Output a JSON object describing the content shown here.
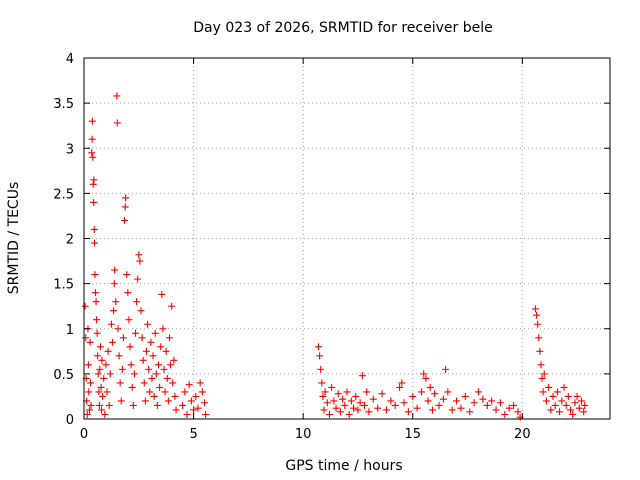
{
  "chart_data": {
    "type": "scatter",
    "title": "Day 023 of 2026, SRMTID for receiver bele",
    "xlabel": "GPS time / hours",
    "ylabel": "SRMTID / TECUs",
    "xlim": [
      0,
      24
    ],
    "ylim": [
      0,
      4
    ],
    "xticks": [
      0,
      5,
      10,
      15,
      20
    ],
    "yticks": [
      0,
      0.5,
      1,
      1.5,
      2,
      2.5,
      3,
      3.5,
      4
    ],
    "xtick_labels": [
      "0",
      "5",
      "10",
      "15",
      "20"
    ],
    "ytick_labels": [
      "0",
      "0.5",
      "1",
      "1.5",
      "2",
      "2.5",
      "3",
      "3.5",
      "4"
    ],
    "grid": true,
    "marker": "+",
    "color": "#ff0000",
    "series": [
      {
        "name": "SRMTID",
        "points": [
          [
            0.05,
            1.25
          ],
          [
            0.08,
            0.9
          ],
          [
            0.1,
            0.45
          ],
          [
            0.12,
            0.2
          ],
          [
            0.15,
            0.05
          ],
          [
            0.18,
            1.0
          ],
          [
            0.2,
            0.6
          ],
          [
            0.22,
            0.3
          ],
          [
            0.25,
            0.1
          ],
          [
            0.28,
            0.85
          ],
          [
            0.3,
            0.4
          ],
          [
            0.32,
            0.15
          ],
          [
            0.35,
            2.95
          ],
          [
            0.37,
            3.1
          ],
          [
            0.38,
            3.3
          ],
          [
            0.4,
            2.9
          ],
          [
            0.42,
            2.6
          ],
          [
            0.44,
            2.4
          ],
          [
            0.45,
            2.65
          ],
          [
            0.47,
            2.1
          ],
          [
            0.48,
            1.95
          ],
          [
            0.5,
            1.6
          ],
          [
            0.52,
            1.4
          ],
          [
            0.55,
            1.3
          ],
          [
            0.57,
            1.1
          ],
          [
            0.6,
            0.95
          ],
          [
            0.62,
            0.7
          ],
          [
            0.65,
            0.5
          ],
          [
            0.68,
            0.3
          ],
          [
            0.7,
            0.15
          ],
          [
            0.72,
            0.55
          ],
          [
            0.75,
            0.8
          ],
          [
            0.78,
            0.35
          ],
          [
            0.8,
            0.1
          ],
          [
            0.82,
            0.65
          ],
          [
            0.85,
            0.25
          ],
          [
            0.9,
            0.45
          ],
          [
            0.95,
            0.05
          ],
          [
            1.0,
            0.6
          ],
          [
            1.05,
            0.3
          ],
          [
            1.1,
            0.75
          ],
          [
            1.15,
            0.15
          ],
          [
            1.2,
            0.5
          ],
          [
            1.25,
            1.05
          ],
          [
            1.3,
            0.85
          ],
          [
            1.35,
            1.2
          ],
          [
            1.38,
            1.5
          ],
          [
            1.4,
            1.65
          ],
          [
            1.45,
            1.3
          ],
          [
            1.5,
            3.58
          ],
          [
            1.52,
            3.28
          ],
          [
            1.55,
            1.0
          ],
          [
            1.6,
            0.7
          ],
          [
            1.65,
            0.4
          ],
          [
            1.7,
            0.2
          ],
          [
            1.75,
            0.55
          ],
          [
            1.8,
            0.9
          ],
          [
            1.85,
            2.2
          ],
          [
            1.88,
            2.35
          ],
          [
            1.9,
            2.45
          ],
          [
            1.95,
            1.6
          ],
          [
            2.0,
            1.4
          ],
          [
            2.05,
            1.1
          ],
          [
            2.1,
            0.8
          ],
          [
            2.15,
            0.6
          ],
          [
            2.2,
            0.35
          ],
          [
            2.25,
            0.15
          ],
          [
            2.3,
            0.5
          ],
          [
            2.35,
            0.95
          ],
          [
            2.4,
            1.3
          ],
          [
            2.45,
            1.55
          ],
          [
            2.5,
            1.82
          ],
          [
            2.55,
            1.75
          ],
          [
            2.6,
            1.2
          ],
          [
            2.65,
            0.9
          ],
          [
            2.7,
            0.65
          ],
          [
            2.75,
            0.4
          ],
          [
            2.8,
            0.2
          ],
          [
            2.85,
            0.75
          ],
          [
            2.9,
            1.05
          ],
          [
            2.95,
            0.55
          ],
          [
            3.0,
            0.3
          ],
          [
            3.05,
            0.85
          ],
          [
            3.1,
            0.45
          ],
          [
            3.15,
            0.7
          ],
          [
            3.2,
            0.25
          ],
          [
            3.25,
            0.95
          ],
          [
            3.3,
            0.5
          ],
          [
            3.35,
            0.15
          ],
          [
            3.4,
            0.6
          ],
          [
            3.45,
            0.35
          ],
          [
            3.5,
            0.8
          ],
          [
            3.55,
            1.38
          ],
          [
            3.6,
            1.0
          ],
          [
            3.65,
            0.55
          ],
          [
            3.7,
            0.3
          ],
          [
            3.75,
            0.75
          ],
          [
            3.8,
            0.45
          ],
          [
            3.85,
            0.2
          ],
          [
            3.9,
            0.9
          ],
          [
            3.95,
            0.6
          ],
          [
            4.0,
            1.25
          ],
          [
            4.05,
            0.4
          ],
          [
            4.1,
            0.65
          ],
          [
            4.15,
            0.25
          ],
          [
            4.2,
            0.1
          ],
          [
            4.5,
            0.15
          ],
          [
            4.6,
            0.3
          ],
          [
            4.7,
            0.05
          ],
          [
            4.8,
            0.38
          ],
          [
            4.9,
            0.2
          ],
          [
            5.0,
            0.1
          ],
          [
            5.1,
            0.25
          ],
          [
            5.2,
            0.12
          ],
          [
            5.3,
            0.4
          ],
          [
            5.4,
            0.3
          ],
          [
            5.5,
            0.18
          ],
          [
            5.55,
            0.05
          ],
          [
            10.7,
            0.8
          ],
          [
            10.75,
            0.7
          ],
          [
            10.8,
            0.55
          ],
          [
            10.85,
            0.4
          ],
          [
            10.9,
            0.25
          ],
          [
            10.95,
            0.1
          ],
          [
            11.0,
            0.3
          ],
          [
            11.1,
            0.18
          ],
          [
            11.2,
            0.05
          ],
          [
            11.3,
            0.35
          ],
          [
            11.4,
            0.2
          ],
          [
            11.5,
            0.12
          ],
          [
            11.6,
            0.28
          ],
          [
            11.7,
            0.08
          ],
          [
            11.8,
            0.22
          ],
          [
            11.9,
            0.15
          ],
          [
            12.0,
            0.3
          ],
          [
            12.1,
            0.05
          ],
          [
            12.2,
            0.2
          ],
          [
            12.3,
            0.12
          ],
          [
            12.4,
            0.25
          ],
          [
            12.5,
            0.1
          ],
          [
            12.6,
            0.18
          ],
          [
            12.7,
            0.48
          ],
          [
            12.8,
            0.15
          ],
          [
            12.9,
            0.3
          ],
          [
            13.0,
            0.08
          ],
          [
            13.2,
            0.22
          ],
          [
            13.4,
            0.12
          ],
          [
            13.6,
            0.28
          ],
          [
            13.8,
            0.1
          ],
          [
            14.0,
            0.2
          ],
          [
            14.2,
            0.15
          ],
          [
            14.4,
            0.35
          ],
          [
            14.5,
            0.4
          ],
          [
            14.6,
            0.18
          ],
          [
            14.8,
            0.08
          ],
          [
            15.0,
            0.25
          ],
          [
            15.2,
            0.12
          ],
          [
            15.4,
            0.3
          ],
          [
            15.5,
            0.5
          ],
          [
            15.6,
            0.45
          ],
          [
            15.7,
            0.2
          ],
          [
            15.8,
            0.35
          ],
          [
            15.9,
            0.1
          ],
          [
            16.0,
            0.28
          ],
          [
            16.2,
            0.15
          ],
          [
            16.4,
            0.22
          ],
          [
            16.5,
            0.55
          ],
          [
            16.6,
            0.3
          ],
          [
            16.8,
            0.1
          ],
          [
            17.0,
            0.2
          ],
          [
            17.2,
            0.12
          ],
          [
            17.4,
            0.25
          ],
          [
            17.6,
            0.08
          ],
          [
            17.8,
            0.18
          ],
          [
            18.0,
            0.3
          ],
          [
            18.2,
            0.22
          ],
          [
            18.4,
            0.15
          ],
          [
            18.6,
            0.2
          ],
          [
            18.8,
            0.1
          ],
          [
            19.0,
            0.18
          ],
          [
            19.2,
            0.05
          ],
          [
            19.4,
            0.12
          ],
          [
            19.6,
            0.15
          ],
          [
            19.8,
            0.08
          ],
          [
            19.9,
            0.02
          ],
          [
            20.6,
            1.22
          ],
          [
            20.65,
            1.15
          ],
          [
            20.7,
            1.05
          ],
          [
            20.75,
            0.9
          ],
          [
            20.8,
            0.75
          ],
          [
            20.85,
            0.6
          ],
          [
            20.9,
            0.45
          ],
          [
            20.95,
            0.3
          ],
          [
            21.0,
            0.5
          ],
          [
            21.1,
            0.2
          ],
          [
            21.2,
            0.35
          ],
          [
            21.3,
            0.1
          ],
          [
            21.4,
            0.25
          ],
          [
            21.5,
            0.15
          ],
          [
            21.6,
            0.3
          ],
          [
            21.7,
            0.08
          ],
          [
            21.8,
            0.2
          ],
          [
            21.9,
            0.35
          ],
          [
            22.0,
            0.15
          ],
          [
            22.1,
            0.25
          ],
          [
            22.2,
            0.1
          ],
          [
            22.3,
            0.05
          ],
          [
            22.4,
            0.18
          ],
          [
            22.5,
            0.25
          ],
          [
            22.6,
            0.12
          ],
          [
            22.7,
            0.2
          ],
          [
            22.8,
            0.08
          ],
          [
            22.85,
            0.15
          ]
        ]
      }
    ]
  }
}
